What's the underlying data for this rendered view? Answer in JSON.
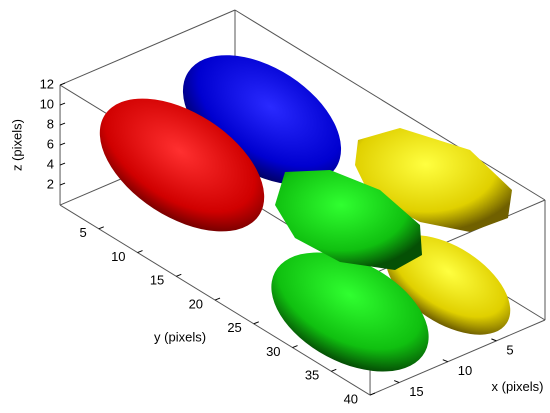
{
  "chart_data": {
    "type": "isosurface3d",
    "xlabel": "x (pixels)",
    "ylabel": "y (pixels)",
    "zlabel": "z (pixels)",
    "xlim": [
      0,
      18
    ],
    "ylim": [
      0,
      40
    ],
    "zlim": [
      0,
      12
    ],
    "xticks": [
      5,
      10,
      15
    ],
    "yticks": [
      5,
      10,
      15,
      20,
      25,
      30,
      35,
      40
    ],
    "zticks": [
      2,
      4,
      6,
      8,
      10,
      12
    ]
  }
}
